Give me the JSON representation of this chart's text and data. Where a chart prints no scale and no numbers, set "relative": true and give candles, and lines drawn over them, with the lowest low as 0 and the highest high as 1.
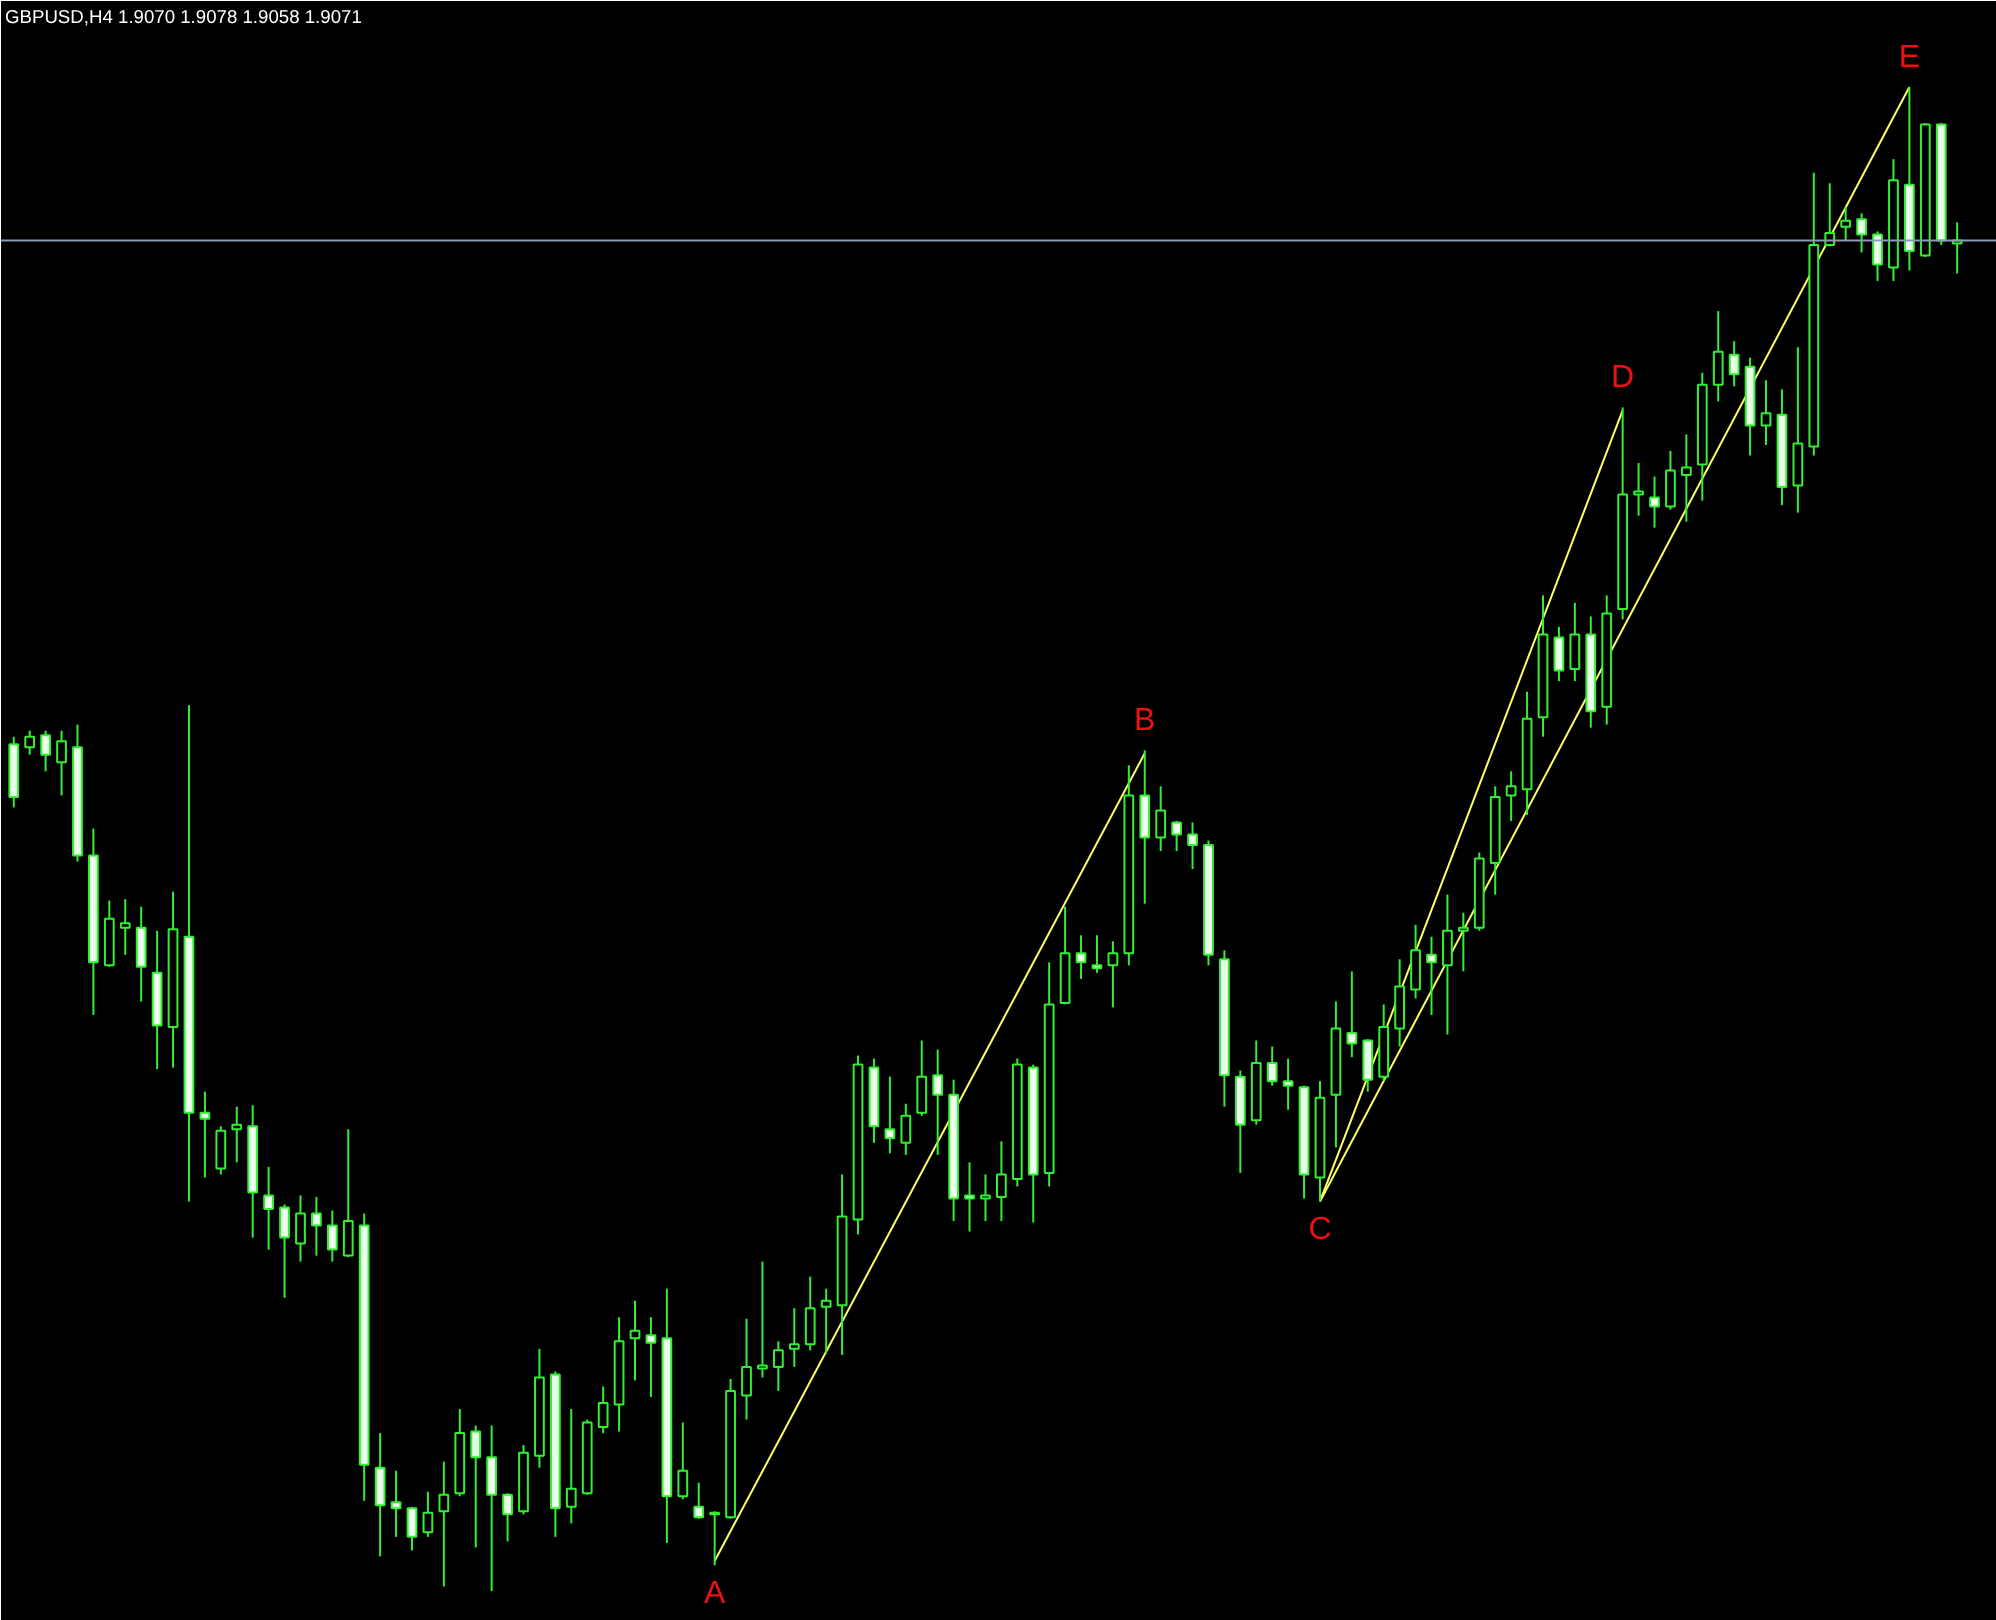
{
  "chart_data": {
    "type": "candlestick",
    "title": "GBPUSD,H4  1.9070 1.9078 1.9058 1.9071",
    "relative": true,
    "tick_labels": false,
    "grid": false,
    "color": "#33ee33",
    "categories": [
      null,
      null,
      null,
      null,
      null,
      null,
      null,
      null,
      null,
      null,
      null,
      null,
      null,
      null,
      null,
      null,
      null,
      null,
      null,
      null,
      null,
      null,
      null,
      null,
      null,
      null,
      null,
      null,
      null,
      null,
      null,
      null,
      null,
      null,
      null,
      null,
      null,
      null,
      null,
      null,
      null,
      null,
      null,
      null,
      null,
      null,
      null,
      null,
      null,
      null,
      null,
      null,
      null,
      null,
      null,
      null,
      null,
      null,
      null,
      null,
      null,
      null,
      null,
      null,
      null,
      null,
      null,
      null,
      null,
      null,
      null,
      null,
      null,
      null,
      null,
      null,
      null,
      null,
      null,
      null,
      null,
      null,
      null,
      null,
      null,
      null,
      null,
      null,
      null,
      null,
      null,
      null,
      null,
      null,
      null,
      null,
      null,
      null,
      null,
      null,
      null,
      null,
      null,
      null,
      null,
      null,
      null,
      null,
      null,
      null,
      null,
      null,
      null,
      null,
      null,
      null,
      null,
      null,
      null,
      null,
      null,
      null,
      null
    ],
    "ohlc": [
      [
        0.563,
        0.568,
        0.521,
        0.528
      ],
      [
        0.561,
        0.572,
        0.556,
        0.568
      ],
      [
        0.569,
        0.572,
        0.545,
        0.556
      ],
      [
        0.551,
        0.572,
        0.529,
        0.565
      ],
      [
        0.561,
        0.576,
        0.485,
        0.489
      ],
      [
        0.489,
        0.507,
        0.383,
        0.418
      ],
      [
        0.416,
        0.459,
        0.415,
        0.447
      ],
      [
        0.441,
        0.46,
        0.423,
        0.444
      ],
      [
        0.441,
        0.455,
        0.392,
        0.415
      ],
      [
        0.411,
        0.439,
        0.347,
        0.376
      ],
      [
        0.375,
        0.465,
        0.348,
        0.44
      ],
      [
        0.435,
        0.589,
        0.259,
        0.318
      ],
      [
        0.318,
        0.332,
        0.275,
        0.314
      ],
      [
        0.281,
        0.309,
        0.277,
        0.306
      ],
      [
        0.307,
        0.322,
        0.285,
        0.31
      ],
      [
        0.309,
        0.323,
        0.235,
        0.265
      ],
      [
        0.263,
        0.282,
        0.227,
        0.254
      ],
      [
        0.255,
        0.257,
        0.195,
        0.235
      ],
      [
        0.231,
        0.263,
        0.219,
        0.251
      ],
      [
        0.251,
        0.262,
        0.223,
        0.243
      ],
      [
        0.243,
        0.253,
        0.219,
        0.227
      ],
      [
        0.223,
        0.307,
        0.222,
        0.246
      ],
      [
        0.243,
        0.251,
        0.06,
        0.084
      ],
      [
        0.082,
        0.105,
        0.023,
        0.057
      ],
      [
        0.059,
        0.08,
        0.036,
        0.055
      ],
      [
        0.055,
        0.056,
        0.027,
        0.036
      ],
      [
        0.039,
        0.066,
        0.036,
        0.052
      ],
      [
        0.053,
        0.086,
        0.003,
        0.064
      ],
      [
        0.065,
        0.121,
        0.063,
        0.105
      ],
      [
        0.106,
        0.11,
        0.029,
        0.089
      ],
      [
        0.089,
        0.11,
        0,
        0.064
      ],
      [
        0.064,
        0.065,
        0.033,
        0.051
      ],
      [
        0.053,
        0.097,
        0.051,
        0.092
      ],
      [
        0.09,
        0.161,
        0.082,
        0.142
      ],
      [
        0.144,
        0.146,
        0.036,
        0.055
      ],
      [
        0.056,
        0.121,
        0.045,
        0.068
      ],
      [
        0.065,
        0.114,
        0.064,
        0.112
      ],
      [
        0.109,
        0.136,
        0.105,
        0.125
      ],
      [
        0.124,
        0.182,
        0.106,
        0.166
      ],
      [
        0.168,
        0.193,
        0.14,
        0.173
      ],
      [
        0.17,
        0.182,
        0.129,
        0.165
      ],
      [
        0.168,
        0.201,
        0.032,
        0.063
      ],
      [
        0.063,
        0.112,
        0.061,
        0.08
      ],
      [
        0.056,
        0.072,
        0.048,
        0.049
      ],
      [
        0.052,
        0.053,
        0.017,
        0.051
      ],
      [
        0.049,
        0.141,
        0.048,
        0.133
      ],
      [
        0.13,
        0.181,
        0.114,
        0.149
      ],
      [
        0.148,
        0.219,
        0.142,
        0.15
      ],
      [
        0.149,
        0.166,
        0.133,
        0.16
      ],
      [
        0.161,
        0.188,
        0.149,
        0.164
      ],
      [
        0.164,
        0.209,
        0.16,
        0.188
      ],
      [
        0.189,
        0.201,
        0.158,
        0.193
      ],
      [
        0.19,
        0.277,
        0.157,
        0.249
      ],
      [
        0.247,
        0.356,
        0.237,
        0.35
      ],
      [
        0.348,
        0.354,
        0.298,
        0.309
      ],
      [
        0.307,
        0.342,
        0.291,
        0.301
      ],
      [
        0.298,
        0.324,
        0.29,
        0.316
      ],
      [
        0.318,
        0.366,
        0.316,
        0.342
      ],
      [
        0.343,
        0.36,
        0.29,
        0.33
      ],
      [
        0.33,
        0.34,
        0.246,
        0.261
      ],
      [
        0.263,
        0.285,
        0.239,
        0.261
      ],
      [
        0.261,
        0.277,
        0.246,
        0.263
      ],
      [
        0.262,
        0.299,
        0.246,
        0.277
      ],
      [
        0.274,
        0.354,
        0.269,
        0.35
      ],
      [
        0.348,
        0.35,
        0.245,
        0.277
      ],
      [
        0.278,
        0.418,
        0.269,
        0.39
      ],
      [
        0.391,
        0.455,
        0.39,
        0.424
      ],
      [
        0.424,
        0.436,
        0.407,
        0.418
      ],
      [
        0.416,
        0.436,
        0.411,
        0.414
      ],
      [
        0.416,
        0.432,
        0.388,
        0.424
      ],
      [
        0.424,
        0.549,
        0.416,
        0.529
      ],
      [
        0.529,
        0.559,
        0.457,
        0.501
      ],
      [
        0.501,
        0.535,
        0.492,
        0.519
      ],
      [
        0.511,
        0.512,
        0.492,
        0.503
      ],
      [
        0.503,
        0.511,
        0.48,
        0.496
      ],
      [
        0.496,
        0.499,
        0.416,
        0.423
      ],
      [
        0.42,
        0.426,
        0.322,
        0.343
      ],
      [
        0.342,
        0.346,
        0.278,
        0.31
      ],
      [
        0.313,
        0.366,
        0.31,
        0.351
      ],
      [
        0.351,
        0.362,
        0.336,
        0.339
      ],
      [
        0.339,
        0.354,
        0.32,
        0.336
      ],
      [
        0.335,
        0.336,
        0.261,
        0.277
      ],
      [
        0.275,
        0.339,
        0.259,
        0.328
      ],
      [
        0.33,
        0.392,
        0.295,
        0.374
      ],
      [
        0.371,
        0.412,
        0.355,
        0.364
      ],
      [
        0.366,
        0.367,
        0.332,
        0.34
      ],
      [
        0.342,
        0.39,
        0.339,
        0.375
      ],
      [
        0.374,
        0.42,
        0.362,
        0.402
      ],
      [
        0.4,
        0.443,
        0.394,
        0.426
      ],
      [
        0.423,
        0.435,
        0.383,
        0.418
      ],
      [
        0.416,
        0.463,
        0.37,
        0.439
      ],
      [
        0.439,
        0.451,
        0.412,
        0.441
      ],
      [
        0.441,
        0.491,
        0.439,
        0.487
      ],
      [
        0.484,
        0.535,
        0.463,
        0.528
      ],
      [
        0.529,
        0.545,
        0.512,
        0.535
      ],
      [
        0.533,
        0.598,
        0.516,
        0.58
      ],
      [
        0.581,
        0.662,
        0.568,
        0.636
      ],
      [
        0.634,
        0.641,
        0.605,
        0.612
      ],
      [
        0.613,
        0.657,
        0.605,
        0.636
      ],
      [
        0.636,
        0.648,
        0.574,
        0.585
      ],
      [
        0.588,
        0.662,
        0.576,
        0.65
      ],
      [
        0.653,
        0.787,
        0.646,
        0.729
      ],
      [
        0.729,
        0.75,
        0.715,
        0.731
      ],
      [
        0.727,
        0.741,
        0.707,
        0.721
      ],
      [
        0.721,
        0.758,
        0.719,
        0.745
      ],
      [
        0.742,
        0.769,
        0.711,
        0.747
      ],
      [
        0.749,
        0.81,
        0.725,
        0.802
      ],
      [
        0.802,
        0.851,
        0.791,
        0.824
      ],
      [
        0.822,
        0.831,
        0.801,
        0.809
      ],
      [
        0.814,
        0.82,
        0.755,
        0.775
      ],
      [
        0.775,
        0.805,
        0.762,
        0.783
      ],
      [
        0.782,
        0.799,
        0.722,
        0.734
      ],
      [
        0.735,
        0.827,
        0.717,
        0.763
      ],
      [
        0.761,
        0.943,
        0.755,
        0.895
      ],
      [
        0.895,
        0.936,
        0.894,
        0.903
      ],
      [
        0.907,
        0.92,
        0.898,
        0.911
      ],
      [
        0.912,
        0.916,
        0.89,
        0.902
      ],
      [
        0.902,
        0.904,
        0.871,
        0.882
      ],
      [
        0.88,
        0.952,
        0.871,
        0.938
      ],
      [
        0.935,
        1.0,
        0.878,
        0.891
      ],
      [
        0.888,
        0.976,
        0.887,
        0.975
      ],
      [
        0.975,
        0.976,
        0.895,
        0.898
      ],
      [
        0.896,
        0.91,
        0.876,
        0.898
      ]
    ],
    "series": [
      {
        "type": "line",
        "color": "#ffff66",
        "values": [
          null,
          null,
          null,
          null,
          null,
          null,
          null,
          null,
          null,
          null,
          null,
          null,
          null,
          null,
          null,
          null,
          null,
          null,
          null,
          null,
          null,
          null,
          null,
          null,
          null,
          null,
          null,
          null,
          null,
          null,
          null,
          null,
          null,
          null,
          null,
          null,
          null,
          null,
          null,
          null,
          null,
          null,
          null,
          null,
          0.02,
          null,
          null,
          null,
          null,
          null,
          null,
          null,
          null,
          null,
          null,
          null,
          null,
          null,
          null,
          null,
          null,
          null,
          null,
          null,
          null,
          null,
          null,
          null,
          null,
          null,
          null,
          0.557,
          null,
          null,
          null,
          null,
          null,
          null,
          null,
          null,
          null,
          null,
          null,
          null,
          null,
          null,
          null,
          null,
          null,
          null,
          null,
          null,
          null,
          null,
          null,
          null,
          null,
          null,
          null,
          null,
          null,
          null,
          null,
          null,
          null,
          null,
          null,
          null,
          null,
          null,
          null,
          null,
          null,
          null,
          null,
          null,
          null,
          null,
          null,
          null,
          null,
          null,
          null
        ]
      },
      {
        "type": "line",
        "color": "#ffff66",
        "values": [
          null,
          null,
          null,
          null,
          null,
          null,
          null,
          null,
          null,
          null,
          null,
          null,
          null,
          null,
          null,
          null,
          null,
          null,
          null,
          null,
          null,
          null,
          null,
          null,
          null,
          null,
          null,
          null,
          null,
          null,
          null,
          null,
          null,
          null,
          null,
          null,
          null,
          null,
          null,
          null,
          null,
          null,
          null,
          null,
          null,
          null,
          null,
          null,
          null,
          null,
          null,
          null,
          null,
          null,
          null,
          null,
          null,
          null,
          null,
          null,
          null,
          null,
          null,
          null,
          null,
          null,
          null,
          null,
          null,
          null,
          null,
          null,
          null,
          null,
          null,
          null,
          null,
          null,
          null,
          null,
          null,
          null,
          0.259,
          null,
          null,
          null,
          null,
          null,
          null,
          null,
          null,
          null,
          null,
          null,
          null,
          null,
          null,
          null,
          null,
          null,
          null,
          0.785,
          null,
          null,
          null,
          null,
          null,
          null,
          null,
          null,
          null,
          null,
          null,
          null,
          null,
          null,
          null,
          null,
          null,
          null,
          null,
          null,
          null
        ]
      },
      {
        "type": "line",
        "color": "#ffff66",
        "values": [
          null,
          null,
          null,
          null,
          null,
          null,
          null,
          null,
          null,
          null,
          null,
          null,
          null,
          null,
          null,
          null,
          null,
          null,
          null,
          null,
          null,
          null,
          null,
          null,
          null,
          null,
          null,
          null,
          null,
          null,
          null,
          null,
          null,
          null,
          null,
          null,
          null,
          null,
          null,
          null,
          null,
          null,
          null,
          null,
          null,
          null,
          null,
          null,
          null,
          null,
          null,
          null,
          null,
          null,
          null,
          null,
          null,
          null,
          null,
          null,
          null,
          null,
          null,
          null,
          null,
          null,
          null,
          null,
          null,
          null,
          null,
          null,
          null,
          null,
          null,
          null,
          null,
          null,
          null,
          null,
          null,
          null,
          0.259,
          null,
          null,
          null,
          null,
          null,
          null,
          null,
          null,
          null,
          null,
          null,
          null,
          null,
          null,
          null,
          null,
          null,
          null,
          null,
          null,
          null,
          null,
          null,
          null,
          null,
          null,
          null,
          null,
          null,
          null,
          null,
          null,
          null,
          null,
          null,
          null,
          1.0,
          null,
          null,
          null
        ]
      }
    ],
    "ref_lines": [
      {
        "axis": "y",
        "value": 0.898,
        "color": "#8c9bb5"
      }
    ],
    "annotations": [
      {
        "text": "A",
        "y": 0.017
      },
      {
        "text": "B",
        "y": 0.559
      },
      {
        "text": "C",
        "y": 0.259
      },
      {
        "text": "D",
        "y": 0.787
      },
      {
        "text": "E",
        "y": 1.0
      }
    ]
  }
}
